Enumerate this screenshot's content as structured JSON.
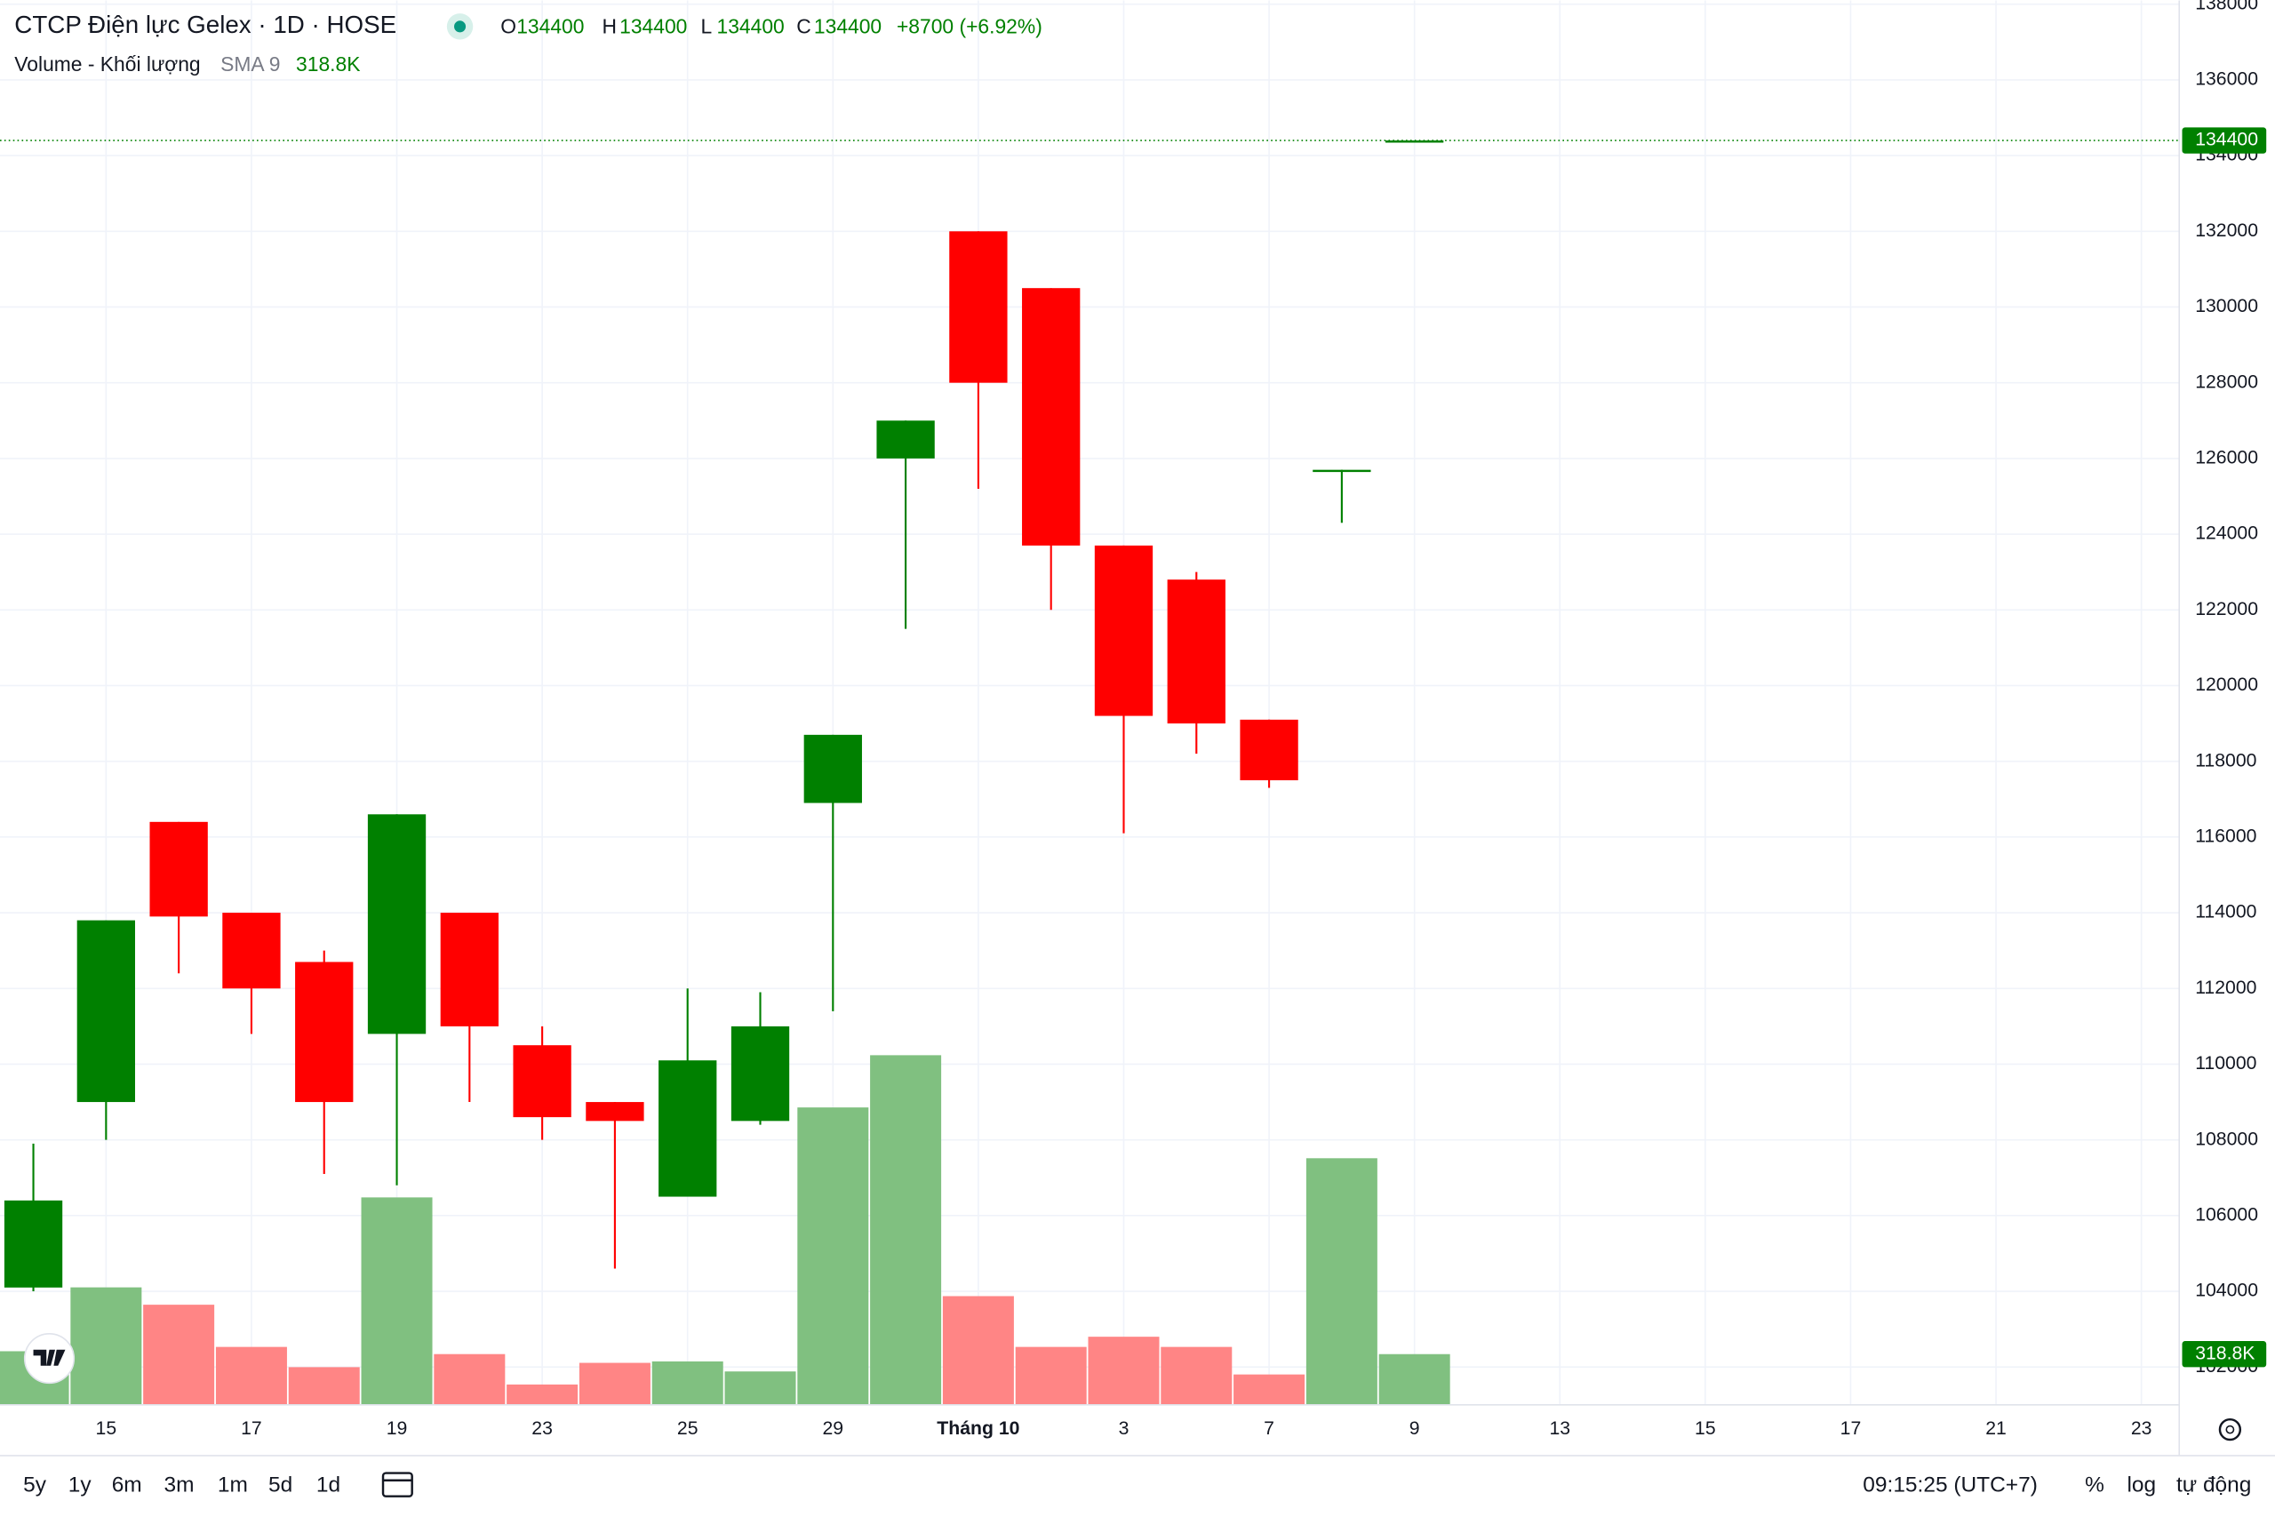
{
  "header": {
    "title": "CTCP Điện lực Gelex · 1D · HOSE",
    "ohlc_labels": [
      "O",
      "H",
      "L",
      "C"
    ],
    "change": "+8700 (+6.92%)",
    "volume_title": "Volume - Khối lượng",
    "sma": "SMA 9",
    "volume_value": "318.8K"
  },
  "chart_data": {
    "type": "candlestick",
    "categories": [
      null,
      "15",
      null,
      "17",
      null,
      "19",
      null,
      "23",
      null,
      "25",
      null,
      "29",
      null,
      "Tháng 10",
      null,
      "3",
      null,
      "7",
      null,
      "9",
      null,
      "13",
      null,
      "15",
      null,
      "17",
      null,
      "21",
      null,
      "23"
    ],
    "open": [
      104100,
      109000,
      116400,
      114000,
      112700,
      110800,
      114000,
      110500,
      109000,
      106500,
      108500,
      116900,
      126000,
      132000,
      130500,
      123700,
      122800,
      119100,
      125700,
      134400,
      null,
      null,
      null,
      null,
      null,
      null,
      null,
      null,
      null,
      null
    ],
    "high": [
      107900,
      113800,
      116400,
      114000,
      113000,
      116600,
      114000,
      111000,
      109000,
      112000,
      111900,
      118700,
      127000,
      132000,
      130500,
      123700,
      123000,
      119100,
      125700,
      134400,
      null,
      null,
      null,
      null,
      null,
      null,
      null,
      null,
      null,
      null
    ],
    "low": [
      104000,
      108000,
      112400,
      110800,
      107100,
      106800,
      109000,
      108000,
      104600,
      106500,
      108400,
      111400,
      121500,
      125200,
      122000,
      116100,
      118200,
      117300,
      124300,
      134400,
      null,
      null,
      null,
      null,
      null,
      null,
      null,
      null,
      null,
      null
    ],
    "close": [
      106400,
      113800,
      113900,
      112000,
      109000,
      116600,
      111000,
      108600,
      108500,
      110100,
      111000,
      118700,
      127000,
      128000,
      123700,
      119200,
      119000,
      117500,
      125700,
      134400,
      null,
      null,
      null,
      null,
      null,
      null,
      null,
      null,
      null,
      null
    ],
    "volume": [
      337000,
      738000,
      629000,
      364000,
      237000,
      1303000,
      319000,
      128000,
      264000,
      273000,
      210000,
      1868000,
      2196000,
      683000,
      364000,
      428000,
      364000,
      191000,
      1549000,
      318800,
      null,
      null,
      null,
      null,
      null,
      null,
      null,
      null,
      null,
      null
    ],
    "up_color": "#008000",
    "down_color": "#ff0000",
    "volume_up_color": "#80c080",
    "volume_down_color": "#ff8585",
    "ylim": [
      101000,
      138100
    ],
    "yticks": [
      102000,
      104000,
      106000,
      108000,
      110000,
      112000,
      114000,
      116000,
      118000,
      120000,
      122000,
      124000,
      126000,
      128000,
      130000,
      132000,
      134000,
      136000,
      138000
    ],
    "grid": true
  },
  "footer": {
    "ranges": [
      "5y",
      "1y",
      "6m",
      "3m",
      "1m",
      "5d",
      "1d"
    ],
    "time": "09:15:25 (UTC+7)",
    "options": [
      "%",
      "log",
      "tự động"
    ]
  }
}
